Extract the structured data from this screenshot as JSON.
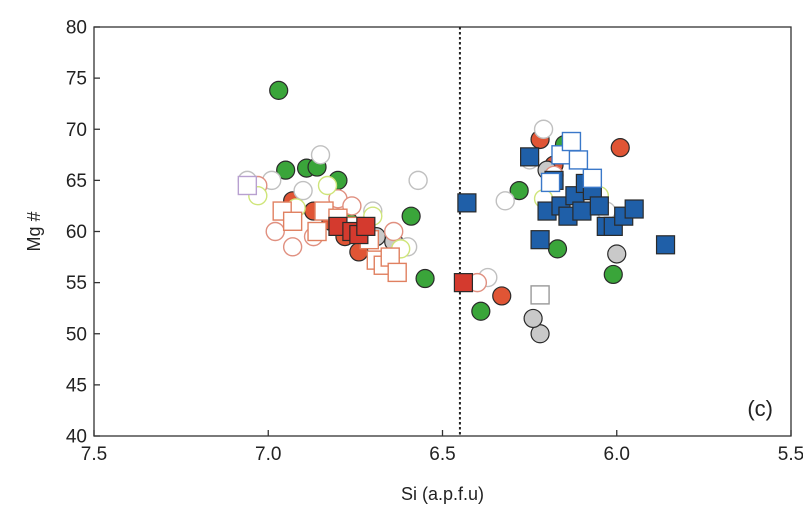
{
  "chart_data": {
    "type": "scatter",
    "title": "",
    "panel_label": "(c)",
    "xlabel": "Si (a.p.f.u)",
    "ylabel": "Mg #",
    "x_reversed": true,
    "xlim": [
      7.5,
      5.5
    ],
    "ylim": [
      40,
      80
    ],
    "x_ticks": [
      "7.5",
      "7.0",
      "6.5",
      "6.0",
      "5.5"
    ],
    "y_ticks": [
      "40",
      "45",
      "50",
      "55",
      "60",
      "65",
      "70",
      "75",
      "80"
    ],
    "grid": false,
    "legend": "none",
    "divider_line": {
      "x": 6.45,
      "style": "dotted"
    },
    "series": [
      {
        "marker": "circle-filled",
        "color": "#3aa53a",
        "points": [
          [
            6.97,
            73.8
          ],
          [
            6.95,
            66
          ],
          [
            6.89,
            66.2
          ],
          [
            6.86,
            66.3
          ],
          [
            6.8,
            65
          ],
          [
            6.77,
            61
          ],
          [
            6.72,
            60.5
          ],
          [
            6.59,
            61.5
          ],
          [
            6.55,
            55.4
          ],
          [
            6.39,
            52.2
          ],
          [
            6.28,
            64
          ],
          [
            6.17,
            58.3
          ],
          [
            6.15,
            68.5
          ],
          [
            6.01,
            55.8
          ]
        ]
      },
      {
        "marker": "circle-filled",
        "color": "#e05535",
        "points": [
          [
            6.93,
            63
          ],
          [
            6.87,
            62
          ],
          [
            6.82,
            61
          ],
          [
            6.78,
            59.5
          ],
          [
            6.74,
            58
          ],
          [
            6.33,
            53.7
          ],
          [
            6.22,
            69
          ],
          [
            6.18,
            66.5
          ],
          [
            5.99,
            68.2
          ]
        ]
      },
      {
        "marker": "circle-filled",
        "color": "#c9c9c9",
        "points": [
          [
            6.69,
            59.5
          ],
          [
            6.64,
            59
          ],
          [
            6.22,
            50
          ],
          [
            6.24,
            51.5
          ],
          [
            6.0,
            57.8
          ],
          [
            6.2,
            66
          ]
        ]
      },
      {
        "marker": "circle-open",
        "color": "#c0c0c0",
        "points": [
          [
            7.06,
            65
          ],
          [
            6.99,
            65
          ],
          [
            6.85,
            67.5
          ],
          [
            6.9,
            64
          ],
          [
            6.7,
            62
          ],
          [
            6.6,
            58.5
          ],
          [
            6.57,
            65
          ],
          [
            6.37,
            55.5
          ],
          [
            6.32,
            63
          ],
          [
            6.21,
            70
          ],
          [
            6.25,
            67
          ],
          [
            6.03,
            62
          ]
        ]
      },
      {
        "marker": "circle-open",
        "color": "#e09080",
        "points": [
          [
            7.03,
            64.5
          ],
          [
            6.98,
            60
          ],
          [
            6.93,
            58.5
          ],
          [
            6.87,
            59.5
          ],
          [
            6.8,
            63.2
          ],
          [
            6.76,
            62.5
          ],
          [
            6.64,
            60
          ],
          [
            6.4,
            55
          ],
          [
            6.18,
            65.5
          ]
        ]
      },
      {
        "marker": "circle-open",
        "color": "#cfe57a",
        "points": [
          [
            7.03,
            63.5
          ],
          [
            6.92,
            62.3
          ],
          [
            6.83,
            64.5
          ],
          [
            6.7,
            61.5
          ],
          [
            6.62,
            58.3
          ],
          [
            6.21,
            63.2
          ],
          [
            6.05,
            63.5
          ]
        ]
      },
      {
        "marker": "square-open",
        "color": "#e08060",
        "points": [
          [
            6.96,
            62
          ],
          [
            6.93,
            61
          ],
          [
            6.86,
            60
          ],
          [
            6.84,
            62
          ],
          [
            6.8,
            61.3
          ],
          [
            6.75,
            60.5
          ],
          [
            6.71,
            59.2
          ],
          [
            6.69,
            57.2
          ],
          [
            6.67,
            56.7
          ],
          [
            6.65,
            57.5
          ],
          [
            6.63,
            56
          ]
        ]
      },
      {
        "marker": "square-open",
        "color": "#b8a0d0",
        "points": [
          [
            7.06,
            64.5
          ]
        ]
      },
      {
        "marker": "square-open",
        "color": "#999999",
        "points": [
          [
            6.22,
            53.8
          ]
        ]
      },
      {
        "marker": "square-filled",
        "color": "#d43a2e",
        "points": [
          [
            6.8,
            60.5
          ],
          [
            6.76,
            60
          ],
          [
            6.74,
            59.7
          ],
          [
            6.72,
            60.5
          ],
          [
            6.44,
            55
          ]
        ]
      },
      {
        "marker": "square-filled",
        "color": "#1f5fa8",
        "points": [
          [
            6.43,
            62.8
          ],
          [
            6.25,
            67.3
          ],
          [
            6.22,
            59.2
          ],
          [
            6.2,
            62
          ],
          [
            6.18,
            65
          ],
          [
            6.16,
            62.5
          ],
          [
            6.14,
            61.5
          ],
          [
            6.12,
            63.5
          ],
          [
            6.1,
            62
          ],
          [
            6.09,
            64.7
          ],
          [
            6.07,
            64
          ],
          [
            6.05,
            62.5
          ],
          [
            6.03,
            60.5
          ],
          [
            6.01,
            60.5
          ],
          [
            5.98,
            61.5
          ],
          [
            5.95,
            62.2
          ],
          [
            5.86,
            58.7
          ]
        ]
      },
      {
        "marker": "square-open",
        "color": "#3a78c9",
        "points": [
          [
            6.16,
            67.5
          ],
          [
            6.13,
            68.8
          ],
          [
            6.11,
            67
          ],
          [
            6.07,
            65.2
          ],
          [
            6.19,
            64.8
          ]
        ]
      }
    ]
  }
}
